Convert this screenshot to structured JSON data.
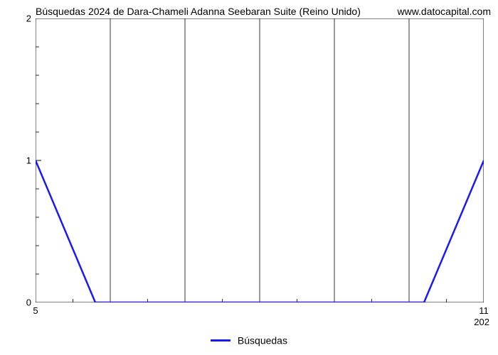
{
  "chart": {
    "type": "line",
    "title": "Búsquedas 2024 de Dara-Chameli Adanna Seebaran Suite (Reino Unido)",
    "watermark": "www.datocapital.com",
    "title_fontsize": 14,
    "background_color": "#ffffff",
    "plot_border_color": "#000000",
    "grid_color": "#000000",
    "grid_line_width": 0.8,
    "y": {
      "lim": [
        0,
        2
      ],
      "major_ticks": [
        0,
        1,
        2
      ],
      "minor_ticks": [
        0.2,
        0.4,
        0.6,
        0.8,
        1.2,
        1.4,
        1.6,
        1.8
      ],
      "label_fontsize": 13,
      "label_color": "#000000"
    },
    "x": {
      "lim": [
        5,
        11
      ],
      "tick_positions": [
        5,
        6,
        7,
        8,
        9,
        10,
        11
      ],
      "tick_labels": [
        "5",
        "",
        "",
        "",
        "",
        "",
        "11"
      ],
      "sublabel_right": "202",
      "label_fontsize": 13,
      "minor_tick_positions": [
        5.5,
        6.5,
        7.5,
        8.5,
        9.5,
        10.5
      ]
    },
    "series": {
      "name": "Búsquedas",
      "color": "#1a1af5",
      "line_width": 2.5,
      "x": [
        5,
        5.8,
        10.2,
        11
      ],
      "y": [
        1,
        0,
        0,
        1
      ]
    },
    "legend": {
      "label": "Búsquedas",
      "swatch_color": "#1a1af5",
      "position": "bottom-center",
      "fontsize": 14
    }
  }
}
